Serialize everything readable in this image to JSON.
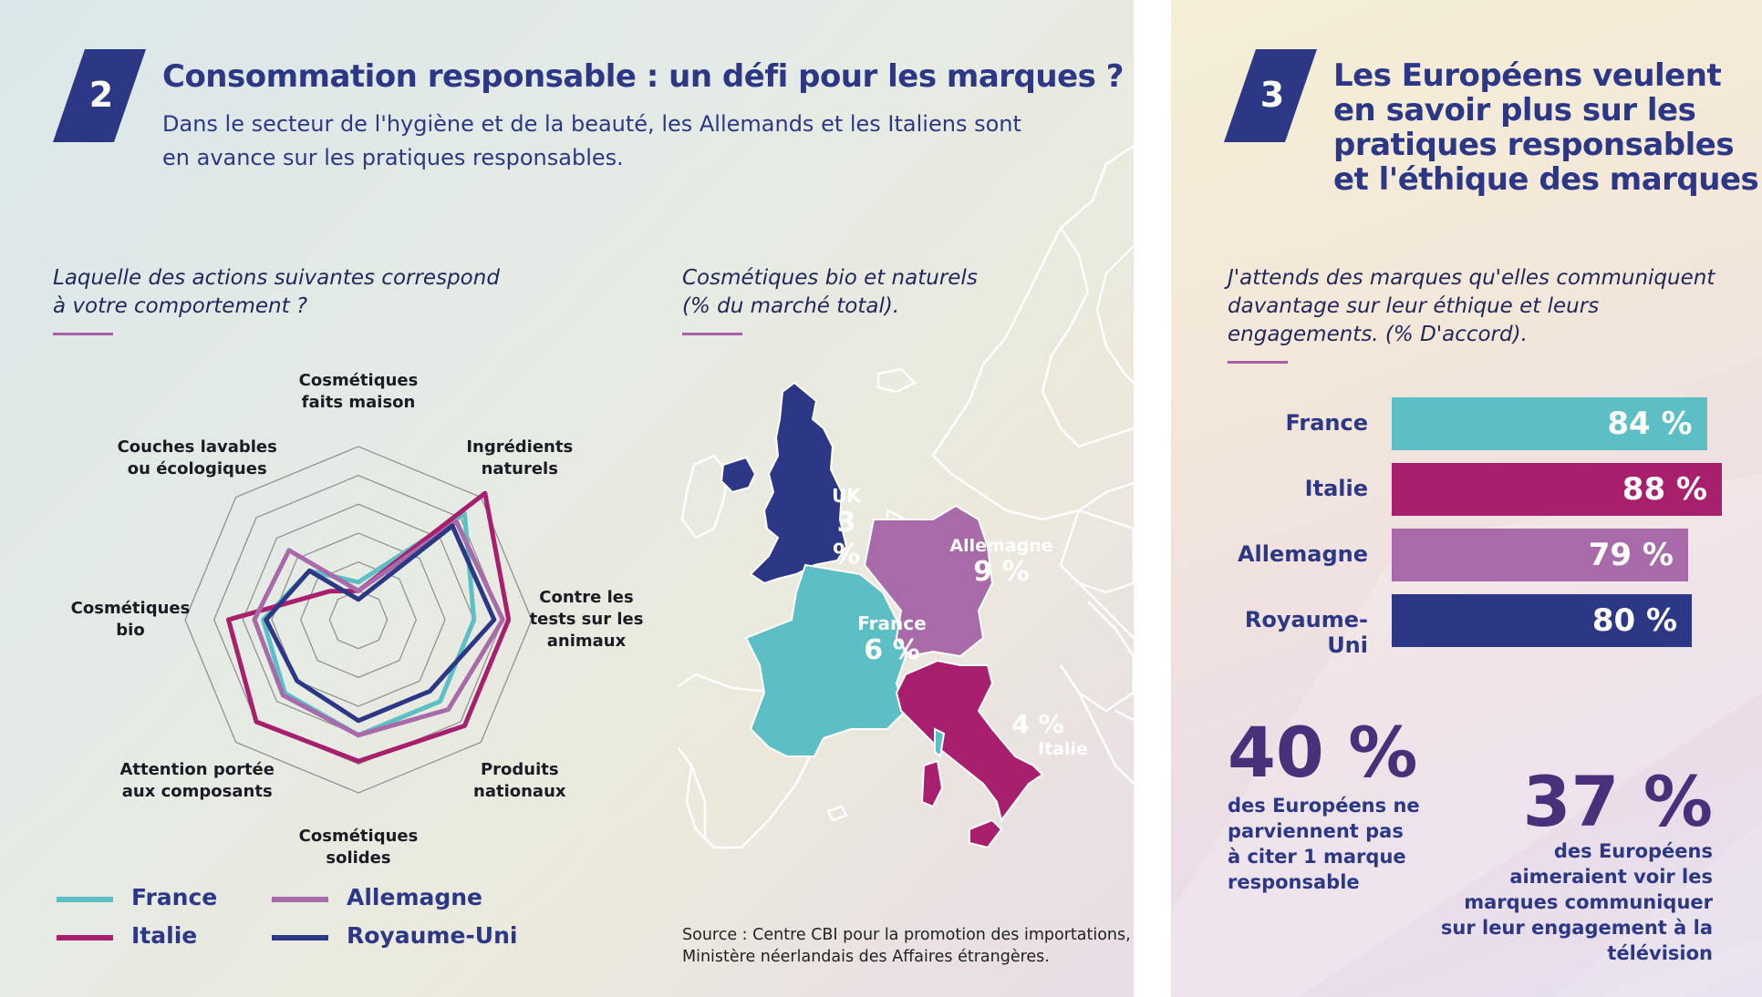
{
  "left": {
    "badge": "2",
    "title": "Consommation responsable : un défi pour les marques ?",
    "subtitle_lines": [
      "Dans le secteur de l'hygiène et de la beauté, les Allemands et les Italiens sont",
      "en avance sur les pratiques responsables."
    ],
    "radar_question_lines": [
      "Laquelle des actions suivantes correspond",
      "à votre comportement ?"
    ],
    "map_question_lines": [
      "Cosmétiques bio et naturels",
      "(% du marché total)."
    ],
    "source_lines": [
      "Source : Centre CBI pour la promotion des importations,",
      "Ministère néerlandais des Affaires étrangères."
    ]
  },
  "right": {
    "badge": "3",
    "title_lines": [
      "Les Européens veulent",
      "en savoir plus sur les",
      "pratiques responsables",
      "et l'éthique des marques"
    ],
    "question_lines": [
      "J'attends des marques qu'elles communiquent",
      "davantage sur leur éthique et leurs",
      "engagements. (% D'accord)."
    ],
    "stat1": {
      "value": "40 %",
      "lines": [
        "des Européens ne",
        "parviennent pas",
        "à citer 1 marque",
        "responsable"
      ]
    },
    "stat2": {
      "value": "37 %",
      "lines": [
        "des Européens",
        "aimeraient voir les",
        "marques communiquer",
        "sur leur engagement à la",
        "télévision"
      ]
    }
  },
  "colors": {
    "france": "#5bbfc5",
    "italie": "#a81f6d",
    "allemagne": "#a86aa8",
    "royaume_uni": "#2c3886",
    "grid": "#8c8c8c",
    "title": "#2c3886"
  },
  "chart_data": [
    {
      "type": "radar",
      "categories": [
        "Cosmétiques faits maison",
        "Ingrédients naturels",
        "Contre les tests sur les animaux",
        "Produits nationaux",
        "Cosmétiques solides",
        "Attention portée aux composants",
        "Cosmétiques bio",
        "Couches lavables ou écologiques"
      ],
      "category_lines": [
        [
          "Cosmétiques",
          "faits maison"
        ],
        [
          "Ingrédients",
          "naturels"
        ],
        [
          "Contre les",
          "tests sur les",
          "animaux"
        ],
        [
          "Produits",
          "nationaux"
        ],
        [
          "Cosmétiques",
          "solides"
        ],
        [
          "Attention portée",
          "aux composants"
        ],
        [
          "Cosmétiques",
          "bio"
        ],
        [
          "Couches lavables",
          "ou écologiques"
        ]
      ],
      "rings": 6,
      "series": [
        {
          "name": "France",
          "values": [
            1.3,
            5.2,
            4.0,
            4.0,
            4.0,
            3.6,
            3.3,
            2.4
          ]
        },
        {
          "name": "Italie",
          "values": [
            1.0,
            6.2,
            5.2,
            5.2,
            4.9,
            5.0,
            4.5,
            1.4
          ]
        },
        {
          "name": "Allemagne",
          "values": [
            1.0,
            4.8,
            5.0,
            4.4,
            4.0,
            3.7,
            3.6,
            3.4
          ]
        },
        {
          "name": "Royaume-Uni",
          "values": [
            0.7,
            4.6,
            4.7,
            3.5,
            3.5,
            3.0,
            3.2,
            2.4
          ]
        }
      ],
      "legend": [
        "France",
        "Allemagne",
        "Italie",
        "Royaume-Uni"
      ]
    },
    {
      "type": "map",
      "title": "Cosmétiques bio et naturels (% du marché total).",
      "regions": [
        {
          "name": "UK",
          "value": 3,
          "label": "3 %"
        },
        {
          "name": "Allemagne",
          "value": 9,
          "label": "9 %"
        },
        {
          "name": "France",
          "value": 6,
          "label": "6 %"
        },
        {
          "name": "Italie",
          "value": 4,
          "label": "4 %"
        }
      ]
    },
    {
      "type": "bar",
      "orientation": "horizontal",
      "title": "J'attends des marques qu'elles communiquent davantage sur leur éthique et leurs engagements. (% D'accord).",
      "categories": [
        "France",
        "Italie",
        "Allemagne",
        "Royaume-Uni"
      ],
      "values": [
        84,
        88,
        79,
        80
      ],
      "value_labels": [
        "84 %",
        "88 %",
        "79 %",
        "80 %"
      ],
      "xlim": [
        0,
        100
      ]
    }
  ]
}
